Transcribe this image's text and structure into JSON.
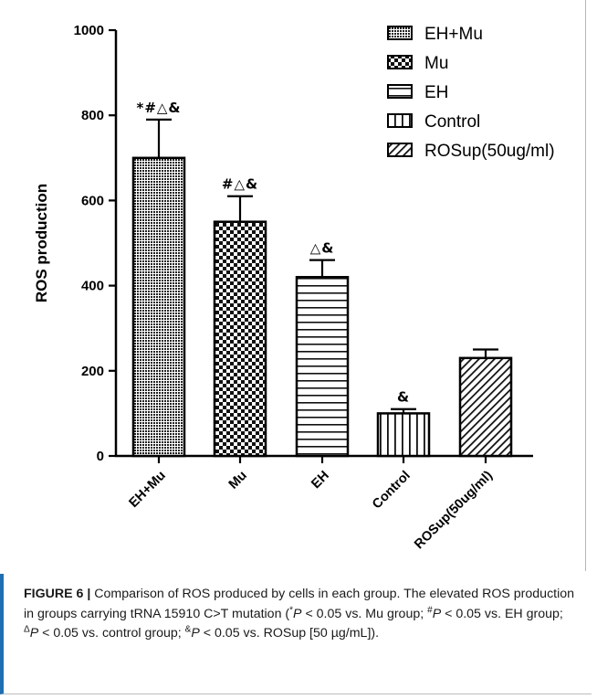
{
  "chart_data": {
    "type": "bar",
    "ylabel": "ROS production",
    "xlabel": "",
    "ylim": [
      0,
      1000
    ],
    "yticks": [
      0,
      200,
      400,
      600,
      800,
      1000
    ],
    "categories": [
      "EH+Mu",
      "Mu",
      "EH",
      "Control",
      "ROSup(50ug/ml)"
    ],
    "values": [
      700,
      550,
      420,
      100,
      230
    ],
    "errors": [
      90,
      60,
      40,
      10,
      20
    ],
    "annotations": [
      "*#△&",
      "#△&",
      "△&",
      "&",
      ""
    ],
    "legend": {
      "placement": "top-right",
      "entries": [
        "EH+Mu",
        "Mu",
        "EH",
        "Control",
        "ROSup(50ug/ml)"
      ]
    },
    "patterns": [
      "crosshatch",
      "checker",
      "horizontal",
      "vertical",
      "diagonal"
    ],
    "grid": false
  },
  "caption": {
    "label": "FIGURE 6 |",
    "text": " Comparison of ROS produced by cells in each group. The elevated ROS production in groups carrying tRNA 15910 C>T mutation (",
    "notes": [
      {
        "sym": "*",
        "text": " < 0.05 vs. Mu group; "
      },
      {
        "sym": "#",
        "text": " < 0.05 vs. EH group; "
      },
      {
        "sym": "Δ",
        "text": " < 0.05 vs. control group; "
      },
      {
        "sym": "&",
        "text": " < 0.05 vs. ROSup [50 µg/mL])."
      }
    ],
    "p_symbol": "P"
  }
}
